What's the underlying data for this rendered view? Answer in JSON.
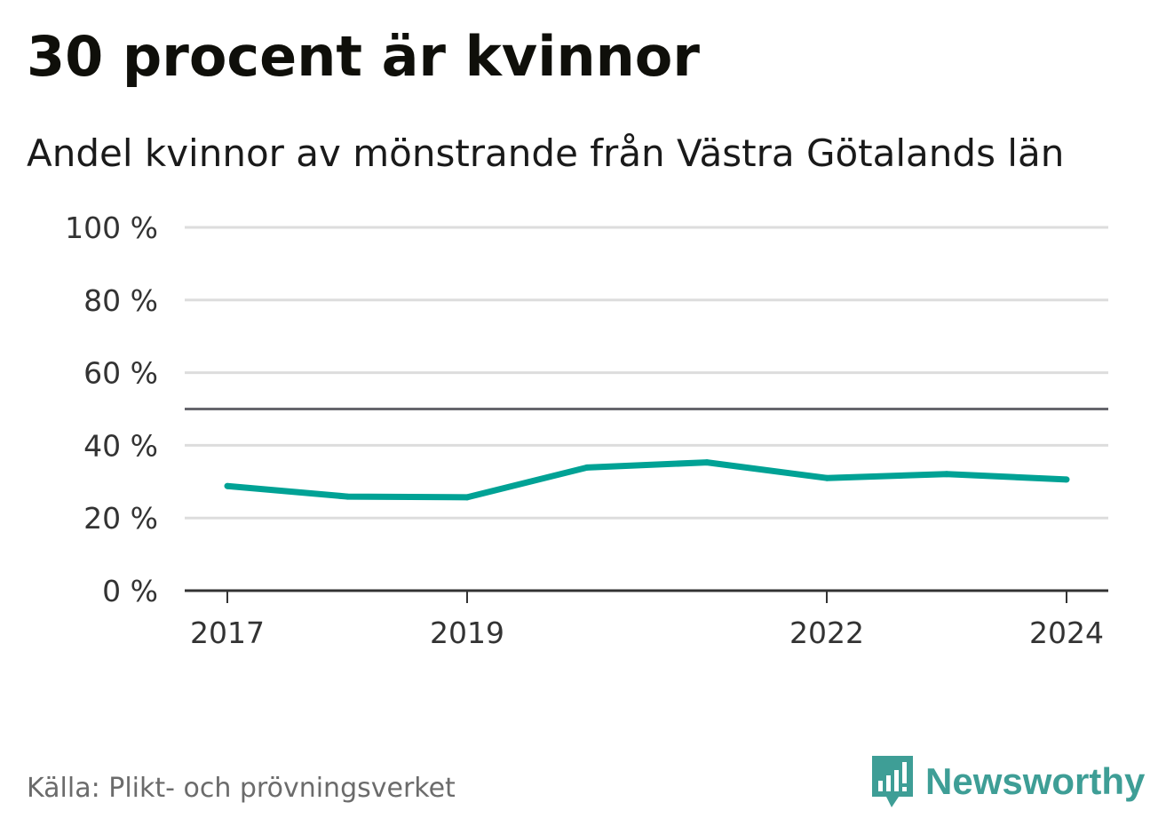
{
  "chart_data": {
    "type": "line",
    "title": "30 procent är kvinnor",
    "subtitle": "Andel kvinnor av mönstrande från Västra Götalands län",
    "xlabel": "",
    "ylabel": "",
    "x": [
      2017,
      2018,
      2019,
      2020,
      2021,
      2022,
      2023,
      2024
    ],
    "series": [
      {
        "name": "Andel kvinnor",
        "color": "#00a295",
        "values": [
          28.8,
          25.9,
          25.7,
          33.9,
          35.3,
          31.0,
          32.1,
          30.6
        ]
      }
    ],
    "ylim": [
      0,
      100
    ],
    "yticks": [
      0,
      20,
      40,
      60,
      80,
      100
    ],
    "ytick_labels": [
      "0 %",
      "20 %",
      "40 %",
      "60 %",
      "80 %",
      "100 %"
    ],
    "xticks": [
      2017,
      2019,
      2022,
      2024
    ],
    "xtick_labels": [
      "2017",
      "2019",
      "2022",
      "2024"
    ],
    "reference_line": 50,
    "grid": true
  },
  "footer": {
    "source": "Källa: Plikt- och prövningsverket",
    "brand": "Newsworthy"
  },
  "colors": {
    "line": "#00a295",
    "grid": "#dddddd",
    "reference": "#66666c",
    "axis": "#333333",
    "brand": "#3e9e96"
  }
}
